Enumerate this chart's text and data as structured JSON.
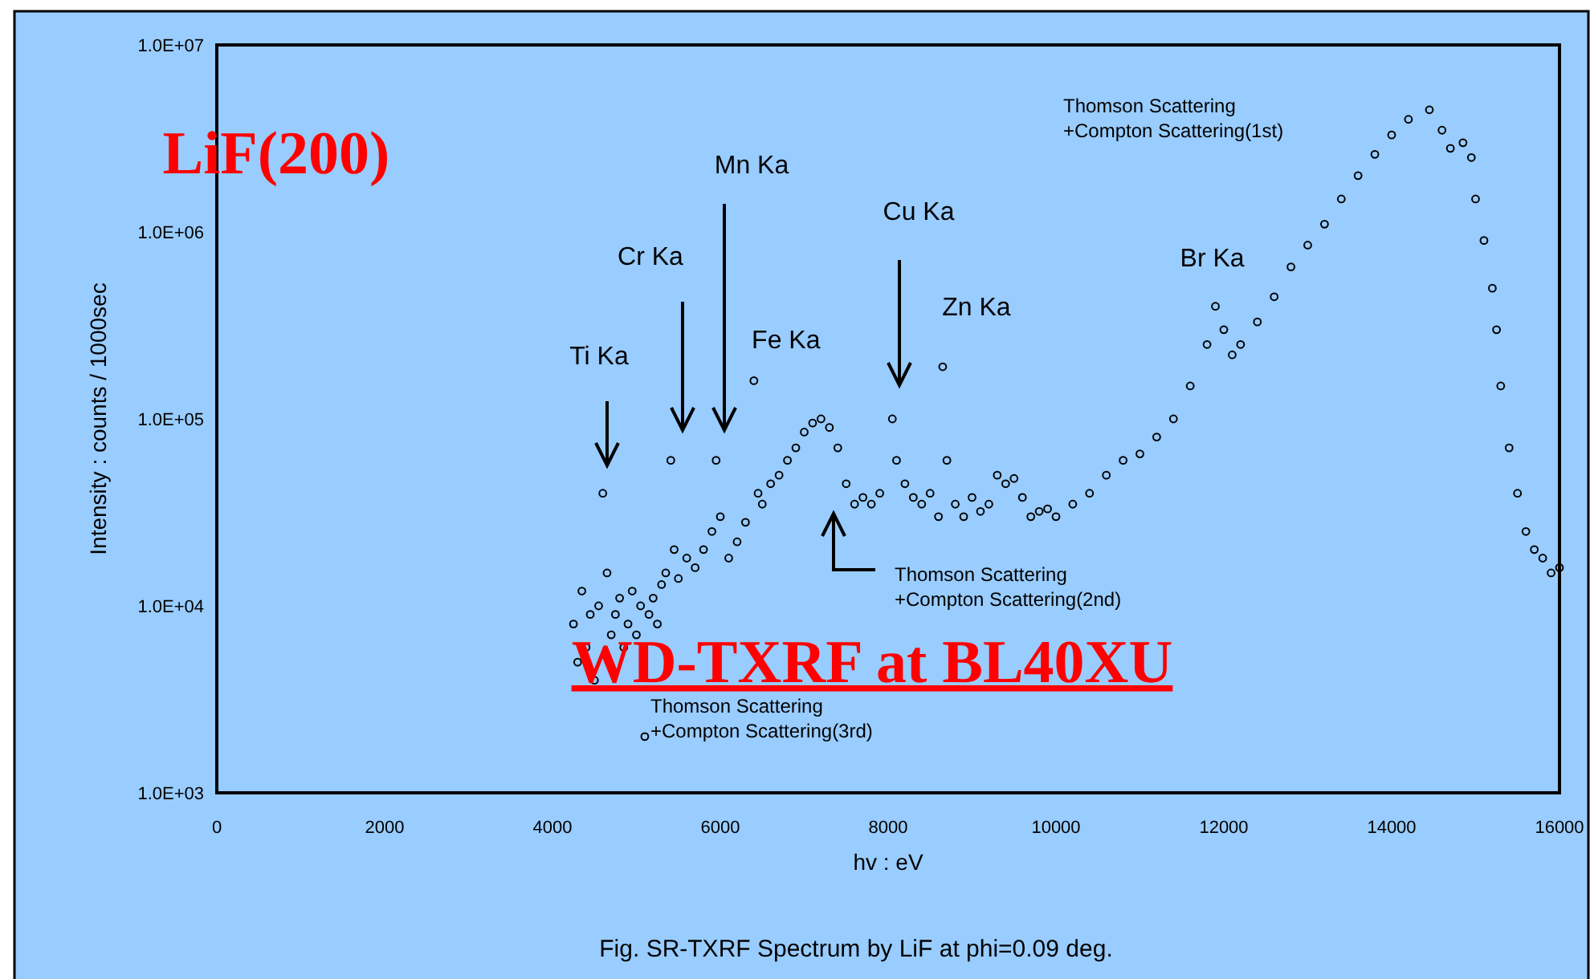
{
  "chart_data": {
    "type": "scatter",
    "title": "Fig. SR-TXRF Spectrum by LiF at phi=0.09 deg.",
    "xlabel": "hv : eV",
    "ylabel": "Intensity : counts / 1000sec",
    "log": "y",
    "marker": "circle",
    "grid": false,
    "xlim": [
      0,
      16000
    ],
    "xticks": [
      0,
      2000,
      4000,
      6000,
      8000,
      10000,
      12000,
      14000,
      16000
    ],
    "ylim": [
      1000,
      10000000
    ],
    "yticks": [
      {
        "value": 1000,
        "label": "1.0E+03"
      },
      {
        "value": 10000,
        "label": "1.0E+04"
      },
      {
        "value": 100000,
        "label": "1.0E+05"
      },
      {
        "value": 1000000,
        "label": "1.0E+06"
      },
      {
        "value": 10000000,
        "label": "1.0E+07"
      }
    ],
    "series": [
      {
        "color": "#000000",
        "x": [
          4250,
          4300,
          4350,
          4400,
          4450,
          4500,
          4550,
          4600,
          4650,
          4700,
          4750,
          4800,
          4850,
          4900,
          4950,
          5000,
          5050,
          5100,
          5150,
          5200,
          5250,
          5300,
          5350,
          5410,
          5450,
          5500,
          5600,
          5700,
          5800,
          5900,
          5950,
          6000,
          6100,
          6200,
          6300,
          6400,
          6450,
          6500,
          6600,
          6700,
          6800,
          6900,
          7000,
          7100,
          7200,
          7300,
          7400,
          7500,
          7600,
          7700,
          7800,
          7900,
          8050,
          8100,
          8200,
          8300,
          8400,
          8500,
          8600,
          8650,
          8700,
          8800,
          8900,
          9000,
          9100,
          9200,
          9300,
          9400,
          9500,
          9600,
          9700,
          9800,
          9900,
          10000,
          10200,
          10400,
          10600,
          10800,
          11000,
          11200,
          11400,
          11600,
          11800,
          11900,
          12000,
          12100,
          12200,
          12400,
          12600,
          12800,
          13000,
          13200,
          13400,
          13600,
          13800,
          14000,
          14200,
          14450,
          14600,
          14700,
          14850,
          14950,
          15000,
          15100,
          15200,
          15250,
          15300,
          15400,
          15500,
          15600,
          15700,
          15800,
          15900,
          16000
        ],
        "values": [
          8000,
          5000,
          12000,
          6000,
          9000,
          4000,
          10000,
          40000,
          15000,
          7000,
          9000,
          11000,
          6000,
          8000,
          12000,
          7000,
          10000,
          2000,
          9000,
          11000,
          8000,
          13000,
          15000,
          60000,
          20000,
          14000,
          18000,
          16000,
          20000,
          25000,
          60000,
          30000,
          18000,
          22000,
          28000,
          160000,
          40000,
          35000,
          45000,
          50000,
          60000,
          70000,
          85000,
          95000,
          100000,
          90000,
          70000,
          45000,
          35000,
          38000,
          35000,
          40000,
          100000,
          60000,
          45000,
          38000,
          35000,
          40000,
          30000,
          190000,
          60000,
          35000,
          30000,
          38000,
          32000,
          35000,
          50000,
          45000,
          48000,
          38000,
          30000,
          32000,
          33000,
          30000,
          35000,
          40000,
          50000,
          60000,
          65000,
          80000,
          100000,
          150000,
          250000,
          400000,
          300000,
          220000,
          250000,
          330000,
          450000,
          650000,
          850000,
          1100000,
          1500000,
          2000000,
          2600000,
          3300000,
          4000000,
          4500000,
          3500000,
          2800000,
          3000000,
          2500000,
          1500000,
          900000,
          500000,
          300000,
          150000,
          70000,
          40000,
          25000,
          20000,
          18000,
          15000,
          16000
        ]
      }
    ],
    "annotations": [
      "LiF(200)",
      "Ti Ka",
      "Cr Ka",
      "Mn Ka",
      {
        "text": "Fe Ka",
        "x": 6400,
        "y": 160000
      },
      "Cu Ka",
      {
        "text": "Zn Ka",
        "x": 8650,
        "y": 190000
      },
      {
        "text": "Br Ka",
        "x": 11900,
        "y": 400000
      },
      "Thomson Scattering\n+Compton Scattering(1st)",
      "Thomson Scattering\n+Compton Scattering(2nd)",
      "Thomson Scattering\n+Compton Scattering(3rd)",
      "WD-TXRF at BL40XU"
    ]
  }
}
